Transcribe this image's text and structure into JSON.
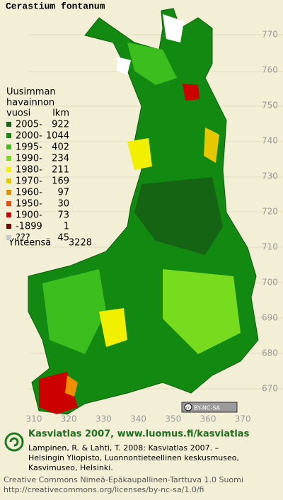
{
  "title": "Cerastium fontanum",
  "legend": {
    "heading": [
      "Uusimman",
      "havainnon",
      "vuosi"
    ],
    "count_heading": "lkm",
    "rows": [
      {
        "label": "2005-",
        "count": 922,
        "color": "#146414"
      },
      {
        "label": "2000-",
        "count": 1044,
        "color": "#0a8c0a"
      },
      {
        "label": "1995-",
        "count": 402,
        "color": "#3cbe1e"
      },
      {
        "label": "1990-",
        "count": 234,
        "color": "#78dc1e"
      },
      {
        "label": "1980-",
        "count": 211,
        "color": "#f0f000"
      },
      {
        "label": "1970-",
        "count": 169,
        "color": "#e6c800"
      },
      {
        "label": "1960-",
        "count": 97,
        "color": "#f08c00"
      },
      {
        "label": "1950-",
        "count": 30,
        "color": "#e65000"
      },
      {
        "label": "1900-",
        "count": 73,
        "color": "#cc0000"
      },
      {
        "label": "-1899",
        "count": 1,
        "color": "#780000"
      },
      {
        "label": "???",
        "count": 45,
        "color": "#c8c8c8"
      }
    ],
    "total_label": "Yhteensä",
    "total": 3228
  },
  "grid": {
    "northing": [
      770,
      760,
      750,
      740,
      730,
      720,
      710,
      700,
      690,
      680,
      670
    ],
    "easting": [
      310,
      320,
      330,
      340,
      350,
      360,
      370
    ]
  },
  "badge": "BY-NC-SA",
  "footer": {
    "site": "Kasviatlas 2007, www.luomus.fi/kasviatlas",
    "citation": [
      "Lampinen, R. & Lahti, T. 2008: Kasviatlas 2007. –",
      "Helsingin Yliopisto, Luonnontieteellinen keskusmuseo,",
      "Kasvimuseo, Helsinki."
    ],
    "license": [
      "Creative Commons Nimeä-Epäkaupallinen-Tarttuva 1.0 Suomi",
      "http://creativecommons.org/licenses/by-nc-sa/1.0/fi"
    ]
  }
}
